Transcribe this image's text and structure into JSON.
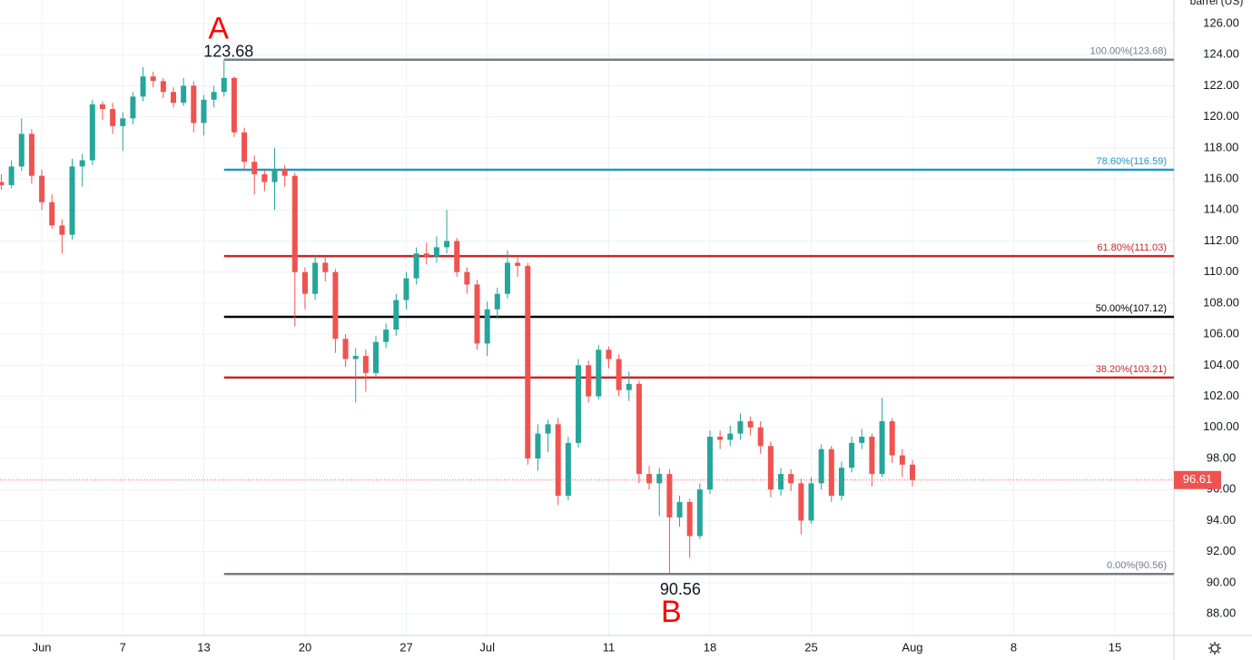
{
  "chart_data": {
    "type": "candlestick",
    "y_unit": "barrel (US)",
    "up_color": "#26a69a",
    "down_color": "#ef5350",
    "xlim": [
      -0.13,
      115.83
    ],
    "xticks": [
      {
        "value": 4,
        "label": "Jun"
      },
      {
        "value": 12,
        "label": "7"
      },
      {
        "value": 20,
        "label": "13"
      },
      {
        "value": 30,
        "label": "20"
      },
      {
        "value": 40,
        "label": "27"
      },
      {
        "value": 48,
        "label": "Jul"
      },
      {
        "value": 60,
        "label": "11"
      },
      {
        "value": 70,
        "label": "18"
      },
      {
        "value": 80,
        "label": "25"
      },
      {
        "value": 90,
        "label": "Aug"
      },
      {
        "value": 100,
        "label": "8"
      },
      {
        "value": 110,
        "label": "15"
      }
    ],
    "ylim": [
      86.6,
      127.52
    ],
    "yticks": [
      {
        "value": 88,
        "label": "88.00"
      },
      {
        "value": 90,
        "label": "90.00"
      },
      {
        "value": 92,
        "label": "92.00"
      },
      {
        "value": 94,
        "label": "94.00"
      },
      {
        "value": 96,
        "label": "96.00"
      },
      {
        "value": 98,
        "label": "98.00"
      },
      {
        "value": 100,
        "label": "100.00"
      },
      {
        "value": 102,
        "label": "102.00"
      },
      {
        "value": 104,
        "label": "104.00"
      },
      {
        "value": 106,
        "label": "106.00"
      },
      {
        "value": 108,
        "label": "108.00"
      },
      {
        "value": 110,
        "label": "110.00"
      },
      {
        "value": 112,
        "label": "112.00"
      },
      {
        "value": 114,
        "label": "114.00"
      },
      {
        "value": 116,
        "label": "116.00"
      },
      {
        "value": 118,
        "label": "118.00"
      },
      {
        "value": 120,
        "label": "120.00"
      },
      {
        "value": 122,
        "label": "122.00"
      },
      {
        "value": 124,
        "label": "124.00"
      },
      {
        "value": 126,
        "label": "126.00"
      }
    ],
    "grid": true,
    "candles": [
      [
        115.8,
        116.3,
        115.3,
        115.6
      ],
      [
        115.6,
        117.2,
        115.4,
        116.8
      ],
      [
        116.8,
        119.9,
        116.5,
        118.9
      ],
      [
        118.9,
        119.2,
        115.7,
        116.2
      ],
      [
        116.2,
        116.6,
        114.0,
        114.5
      ],
      [
        114.5,
        115.0,
        112.8,
        113.0
      ],
      [
        113.0,
        113.4,
        111.2,
        112.4
      ],
      [
        112.4,
        117.3,
        112.1,
        116.8
      ],
      [
        116.8,
        117.6,
        115.5,
        117.2
      ],
      [
        117.2,
        121.1,
        116.9,
        120.8
      ],
      [
        120.8,
        121.0,
        119.8,
        120.5
      ],
      [
        120.5,
        120.9,
        118.9,
        119.4
      ],
      [
        119.4,
        120.3,
        117.8,
        119.9
      ],
      [
        119.9,
        121.6,
        119.5,
        121.3
      ],
      [
        121.3,
        123.2,
        121.0,
        122.6
      ],
      [
        122.6,
        122.9,
        121.9,
        122.3
      ],
      [
        122.3,
        122.5,
        121.2,
        121.6
      ],
      [
        121.6,
        121.9,
        120.6,
        120.9
      ],
      [
        120.9,
        122.5,
        120.7,
        122.0
      ],
      [
        122.0,
        122.3,
        119.0,
        119.6
      ],
      [
        119.6,
        121.4,
        118.8,
        121.1
      ],
      [
        121.1,
        122.0,
        120.6,
        121.6
      ],
      [
        121.6,
        123.68,
        121.3,
        122.5
      ],
      [
        122.5,
        122.6,
        118.7,
        119.0
      ],
      [
        119.0,
        119.3,
        116.5,
        117.1
      ],
      [
        117.1,
        117.5,
        115.0,
        116.3
      ],
      [
        116.3,
        116.6,
        115.2,
        115.8
      ],
      [
        115.8,
        118.0,
        114.0,
        116.6
      ],
      [
        116.6,
        116.9,
        115.5,
        116.2
      ],
      [
        116.2,
        116.4,
        106.5,
        110.0
      ],
      [
        110.0,
        110.3,
        107.6,
        108.6
      ],
      [
        108.6,
        111.1,
        108.2,
        110.6
      ],
      [
        110.6,
        111.0,
        109.4,
        110.0
      ],
      [
        110.0,
        110.2,
        104.8,
        105.7
      ],
      [
        105.7,
        106.0,
        103.9,
        104.4
      ],
      [
        104.4,
        105.1,
        101.6,
        104.6
      ],
      [
        104.6,
        105.0,
        102.3,
        103.5
      ],
      [
        103.5,
        105.9,
        103.3,
        105.5
      ],
      [
        105.5,
        106.7,
        105.1,
        106.3
      ],
      [
        106.3,
        108.6,
        105.9,
        108.2
      ],
      [
        108.2,
        110.0,
        107.6,
        109.6
      ],
      [
        109.6,
        111.6,
        109.2,
        111.2
      ],
      [
        111.2,
        111.9,
        110.5,
        111.0
      ],
      [
        111.0,
        112.3,
        110.6,
        111.6
      ],
      [
        111.6,
        114.0,
        111.2,
        112.0
      ],
      [
        112.0,
        112.2,
        109.7,
        110.0
      ],
      [
        110.0,
        110.3,
        108.6,
        109.2
      ],
      [
        109.2,
        109.5,
        105.0,
        105.4
      ],
      [
        105.4,
        108.1,
        104.6,
        107.6
      ],
      [
        107.6,
        109.0,
        107.0,
        108.6
      ],
      [
        108.6,
        111.4,
        108.3,
        110.6
      ],
      [
        110.6,
        111.0,
        109.7,
        110.4
      ],
      [
        110.4,
        110.6,
        97.6,
        98.0
      ],
      [
        98.0,
        100.2,
        97.2,
        99.6
      ],
      [
        99.6,
        100.5,
        98.4,
        100.2
      ],
      [
        100.2,
        100.6,
        95.0,
        95.6
      ],
      [
        95.6,
        99.4,
        95.3,
        99.0
      ],
      [
        99.0,
        104.4,
        98.7,
        104.0
      ],
      [
        104.0,
        104.3,
        101.6,
        102.0
      ],
      [
        102.0,
        105.3,
        101.8,
        105.0
      ],
      [
        105.0,
        105.2,
        103.8,
        104.4
      ],
      [
        104.4,
        104.7,
        102.0,
        102.4
      ],
      [
        102.4,
        103.6,
        101.7,
        102.8
      ],
      [
        102.8,
        103.0,
        96.4,
        97.0
      ],
      [
        97.0,
        97.5,
        96.0,
        96.4
      ],
      [
        96.4,
        97.4,
        94.3,
        97.0
      ],
      [
        97.0,
        97.3,
        90.56,
        94.2
      ],
      [
        94.2,
        95.6,
        93.6,
        95.2
      ],
      [
        95.2,
        95.4,
        91.6,
        93.0
      ],
      [
        93.0,
        96.4,
        92.8,
        96.0
      ],
      [
        96.0,
        99.8,
        95.7,
        99.4
      ],
      [
        99.4,
        99.8,
        98.6,
        99.2
      ],
      [
        99.2,
        100.1,
        98.8,
        99.6
      ],
      [
        99.6,
        100.9,
        99.2,
        100.4
      ],
      [
        100.4,
        100.7,
        99.5,
        100.0
      ],
      [
        100.0,
        100.4,
        98.3,
        98.8
      ],
      [
        98.8,
        99.1,
        95.5,
        96.0
      ],
      [
        96.0,
        97.4,
        95.6,
        97.0
      ],
      [
        97.0,
        97.3,
        95.9,
        96.4
      ],
      [
        96.4,
        96.7,
        93.1,
        94.0
      ],
      [
        94.0,
        96.8,
        93.8,
        96.4
      ],
      [
        96.4,
        98.9,
        96.0,
        98.6
      ],
      [
        98.6,
        98.8,
        95.2,
        95.6
      ],
      [
        95.6,
        97.8,
        95.3,
        97.4
      ],
      [
        97.4,
        99.4,
        97.1,
        99.0
      ],
      [
        99.0,
        99.9,
        98.6,
        99.4
      ],
      [
        99.4,
        99.6,
        96.2,
        97.0
      ],
      [
        97.0,
        101.9,
        96.8,
        100.4
      ],
      [
        100.4,
        100.6,
        97.7,
        98.2
      ],
      [
        98.2,
        98.6,
        96.8,
        97.6
      ],
      [
        97.6,
        97.9,
        96.2,
        96.61
      ]
    ],
    "levels": [
      {
        "label": "100.00%(123.68)",
        "value": 123.68,
        "color": "#787b86"
      },
      {
        "label": "78.60%(116.59)",
        "value": 116.59,
        "color": "#2196c8"
      },
      {
        "label": "61.80%(111.03)",
        "value": 111.03,
        "color": "#c62828"
      },
      {
        "label": "50.00%(107.12)",
        "value": 107.12,
        "color": "#000000"
      },
      {
        "label": "38.20%(103.21)",
        "value": 103.21,
        "color": "#c62828"
      },
      {
        "label": "0.00%(90.56)",
        "value": 90.56,
        "color": "#787b86"
      }
    ],
    "point_a": {
      "name": "A",
      "value": 123.68
    },
    "point_b": {
      "name": "B",
      "value": 90.56
    }
  }
}
